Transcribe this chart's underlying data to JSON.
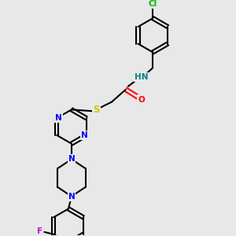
{
  "background_color": "#e8e8e8",
  "bond_color": "#000000",
  "bond_width": 1.5,
  "atom_colors": {
    "N": "#0000ff",
    "O": "#ff0000",
    "S": "#cccc00",
    "Cl": "#00bb00",
    "F": "#cc00cc",
    "HN": "#008080",
    "C": "#000000"
  },
  "font_size": 7.5
}
